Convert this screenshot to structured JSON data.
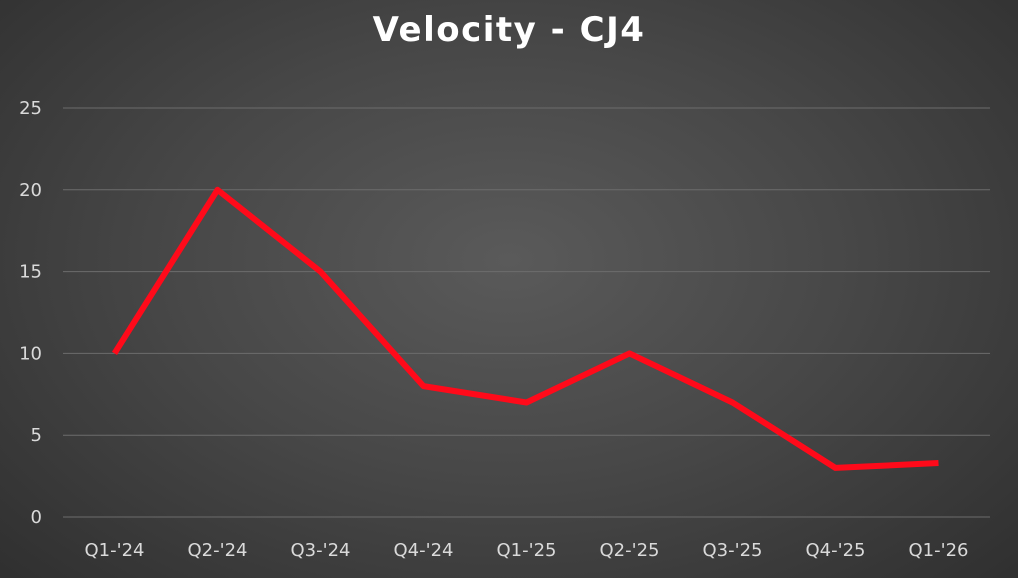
{
  "chart_data": {
    "type": "line",
    "title": "Velocity - CJ4",
    "xlabel": "",
    "ylabel": "",
    "categories": [
      "Q1-'24",
      "Q2-'24",
      "Q3-'24",
      "Q4-'24",
      "Q1-'25",
      "Q2-'25",
      "Q3-'25",
      "Q4-'25",
      "Q1-'26"
    ],
    "series": [
      {
        "values": [
          10,
          20,
          15,
          8,
          7,
          10,
          7,
          3,
          3.3
        ],
        "color": "#ff0a1a"
      }
    ],
    "ylim": [
      0,
      25
    ],
    "yticks": [
      0,
      5,
      10,
      15,
      20,
      25
    ],
    "grid": true,
    "legend": "none",
    "background": "dark gradient"
  }
}
